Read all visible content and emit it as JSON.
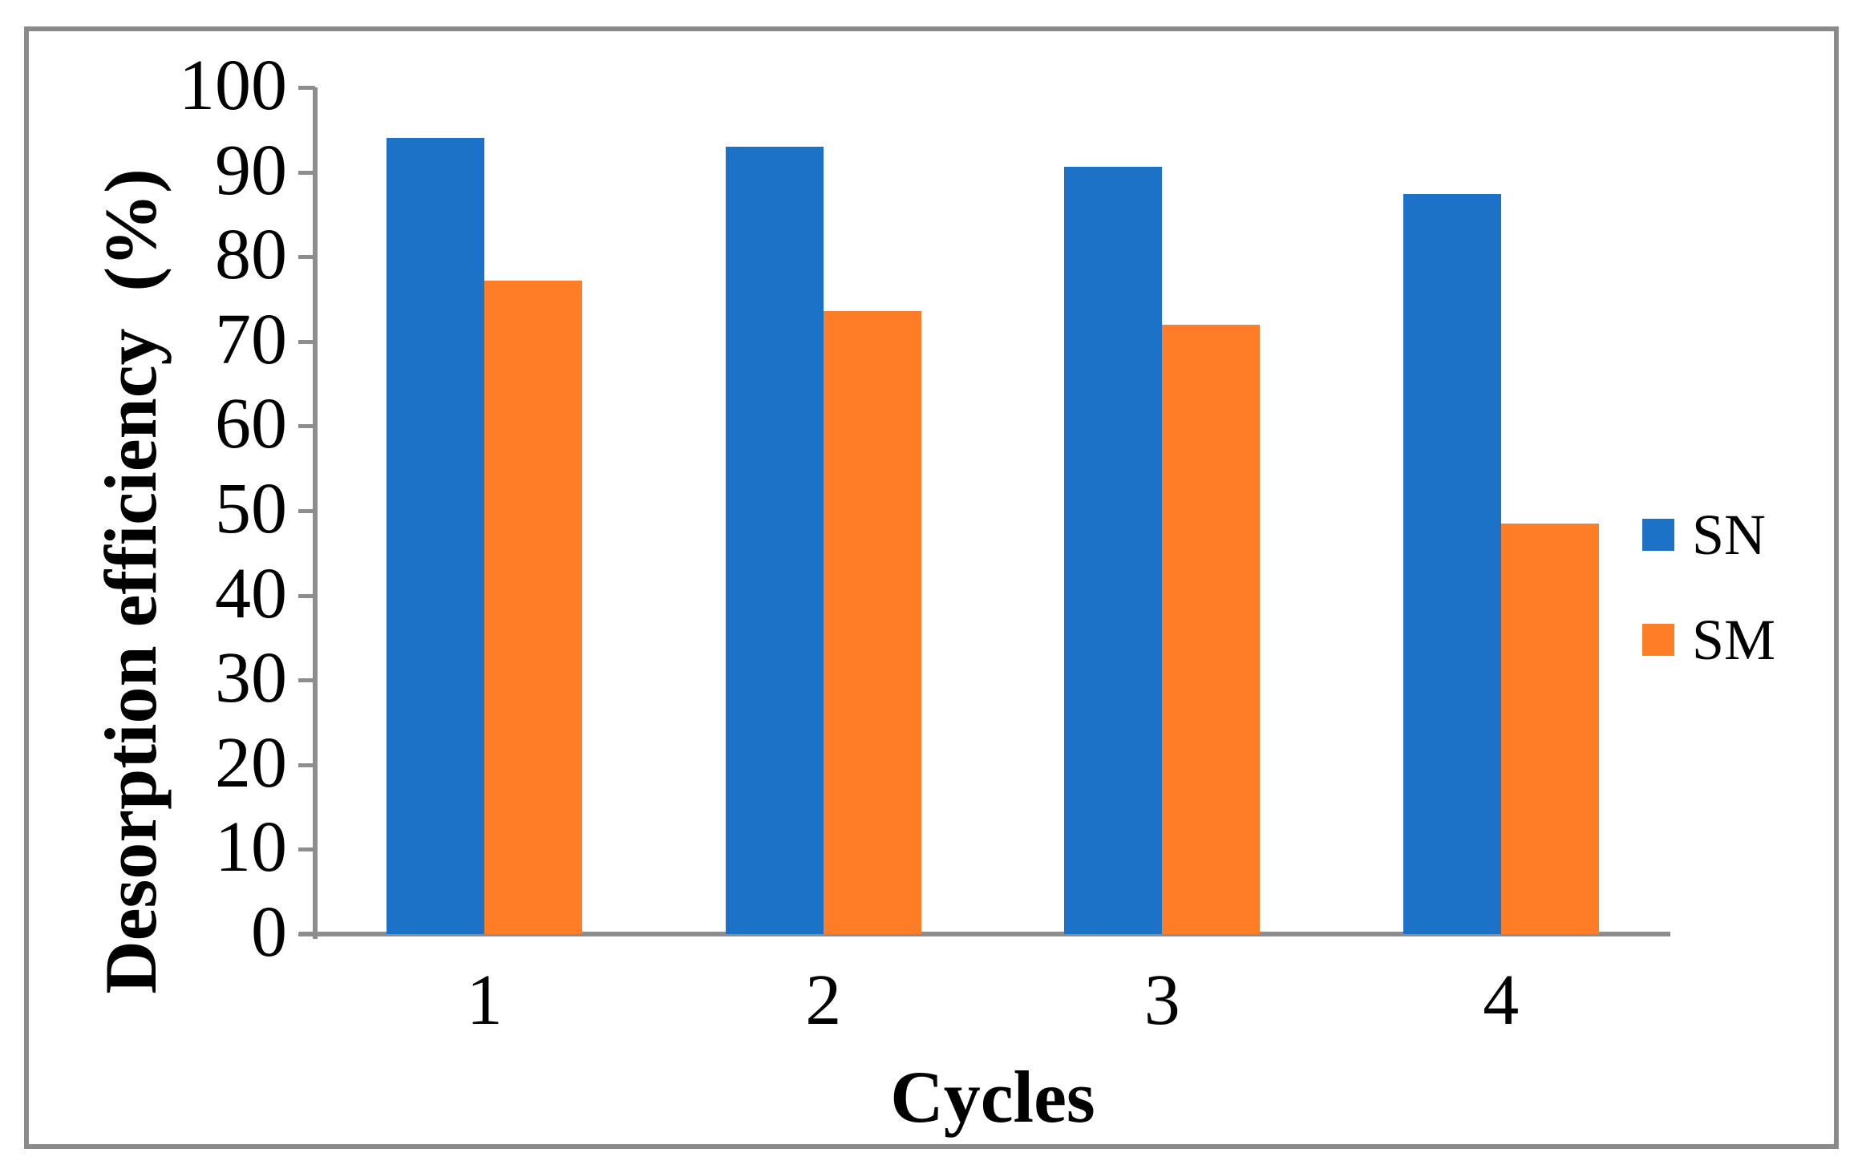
{
  "chart_data": {
    "type": "bar",
    "title": "",
    "categories": [
      "1",
      "2",
      "3",
      "4"
    ],
    "series": [
      {
        "name": "SN",
        "color": "#1B72C6",
        "values": [
          94,
          93,
          90.6,
          87.4
        ]
      },
      {
        "name": "SM",
        "color": "#FF7D26",
        "values": [
          77.2,
          73.6,
          72,
          48.5
        ]
      }
    ],
    "xlabel": "Cycles",
    "ylabel": "Desorption efficiency  (%)",
    "ylim": [
      0,
      100
    ],
    "yticks": [
      100,
      90,
      80,
      70,
      60,
      50,
      40,
      30,
      20,
      10,
      0
    ],
    "grid": false,
    "legend_position": "right",
    "axis_color": "#8D8D8D",
    "frame_color": "#8A8A8A",
    "text_color": "#000000"
  }
}
